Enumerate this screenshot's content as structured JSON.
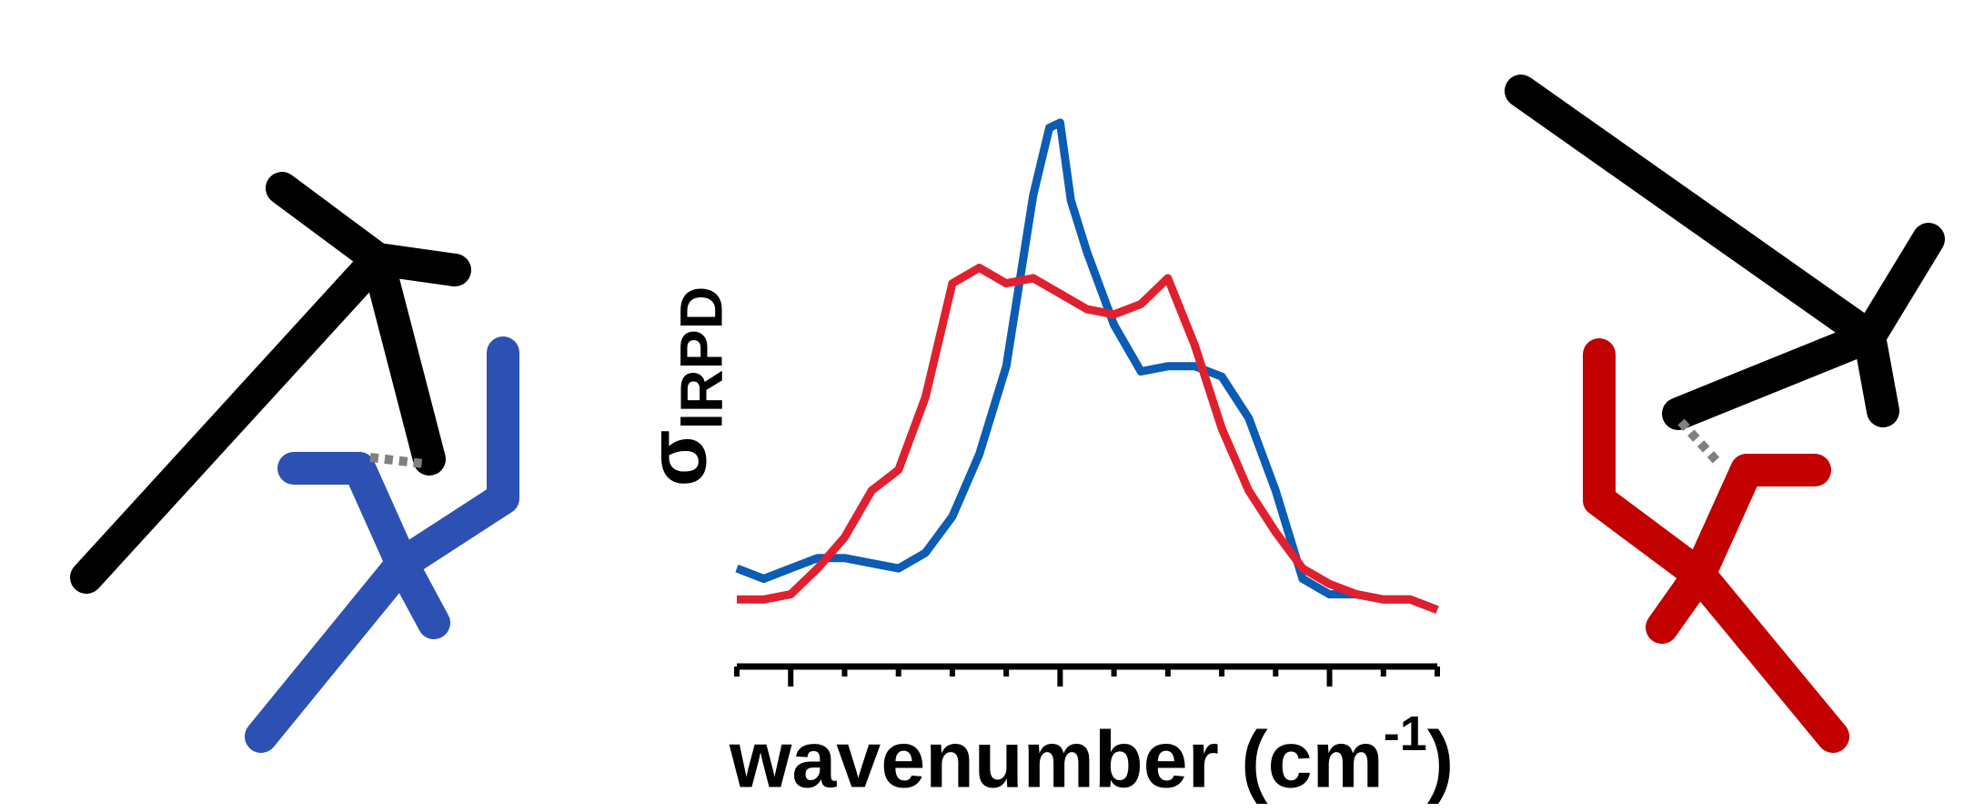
{
  "chart_data": {
    "type": "line",
    "xlabel": "wavenumber",
    "xlabel_unit_prefix": "(cm",
    "xlabel_unit_exp": "-1",
    "xlabel_unit_suffix": ")",
    "ylabel_symbol": "σ",
    "ylabel_subscript": "IRPD",
    "x_tick_count": 14,
    "x_major_tick_indices": [
      1,
      6,
      11
    ],
    "show_tick_labels": false,
    "show_y_axis": false,
    "grid": false,
    "series": [
      {
        "color": "#0a5cb5",
        "x": [
          0,
          0.5,
          1,
          1.5,
          2,
          2.5,
          3,
          3.5,
          4,
          4.5,
          5,
          5.5,
          5.8,
          6,
          6.2,
          6.5,
          7,
          7.5,
          8,
          8.5,
          9,
          9.5,
          10,
          10.5,
          11,
          11.5,
          12,
          12.5,
          13
        ],
        "values": [
          0.07,
          0.05,
          0.07,
          0.09,
          0.09,
          0.08,
          0.07,
          0.1,
          0.17,
          0.29,
          0.46,
          0.79,
          0.92,
          0.93,
          0.78,
          0.68,
          0.54,
          0.45,
          0.46,
          0.46,
          0.44,
          0.36,
          0.22,
          0.05,
          0.02,
          0.02,
          0.01,
          0.01,
          -0.01
        ]
      },
      {
        "color": "#e0202e",
        "x": [
          0,
          0.5,
          1,
          1.5,
          2,
          2.5,
          3,
          3.5,
          4,
          4.5,
          5,
          5.5,
          6,
          6.5,
          7,
          7.5,
          8,
          8.5,
          9,
          9.5,
          10,
          10.5,
          11,
          11.5,
          12,
          12.5,
          13
        ],
        "values": [
          0.01,
          0.01,
          0.02,
          0.07,
          0.13,
          0.22,
          0.26,
          0.4,
          0.62,
          0.65,
          0.62,
          0.63,
          0.6,
          0.57,
          0.56,
          0.58,
          0.63,
          0.5,
          0.34,
          0.22,
          0.14,
          0.07,
          0.04,
          0.02,
          0.01,
          0.01,
          -0.01
        ]
      }
    ]
  },
  "molecules": [
    {
      "name": "left-molecule-blue",
      "color": "#2c51b2"
    },
    {
      "name": "right-molecule-red",
      "color": "#c20000"
    }
  ],
  "hbond_color": "#808080",
  "dark_color": "#000000"
}
